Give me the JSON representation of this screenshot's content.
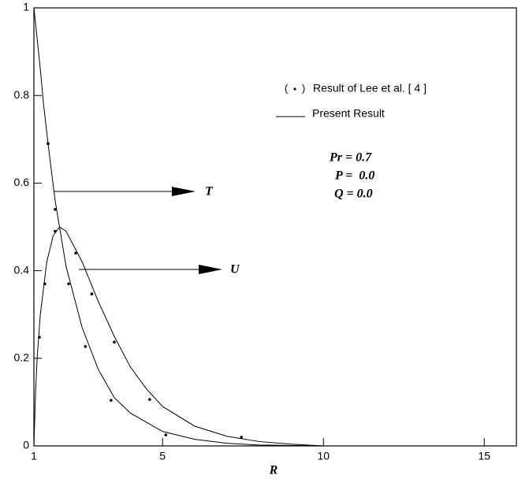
{
  "chart_data": {
    "type": "line",
    "xlabel": "R",
    "xlim": [
      1,
      16
    ],
    "ylim": [
      0,
      1
    ],
    "xticks": [
      1,
      5,
      10,
      15
    ],
    "yticks": [
      0,
      0.2,
      0.4,
      0.6,
      0.8,
      1
    ],
    "series": [
      {
        "name": "Result of Lee et al. [ 4 ]",
        "type": "scatter",
        "color": "#000000",
        "x": [
          1.44,
          1.66,
          2.08,
          2.6,
          3.4,
          5.1,
          1.17,
          1.34,
          1.66,
          2.3,
          2.8,
          3.5,
          4.6,
          7.45
        ],
        "values": [
          0.69,
          0.54,
          0.37,
          0.227,
          0.104,
          0.025,
          0.248,
          0.37,
          0.49,
          0.44,
          0.347,
          0.237,
          0.106,
          0.02
        ]
      },
      {
        "name": "Present Result",
        "type": "line",
        "color": "#000000",
        "curves": [
          {
            "label": "T",
            "x": [
              1,
              1.1,
              1.2,
              1.3,
              1.44,
              1.66,
              2,
              2.5,
              3,
              3.5,
              4,
              5,
              6,
              7,
              8,
              10
            ],
            "values": [
              1,
              0.93,
              0.86,
              0.78,
              0.69,
              0.56,
              0.41,
              0.27,
              0.175,
              0.11,
              0.075,
              0.033,
              0.015,
              0.006,
              0.002,
              0
            ]
          },
          {
            "label": "U",
            "x": [
              1,
              1.05,
              1.1,
              1.2,
              1.4,
              1.6,
              1.8,
              2,
              2.5,
              3,
              3.5,
              4,
              4.5,
              5,
              6,
              7,
              8,
              9,
              10
            ],
            "values": [
              0,
              0.12,
              0.2,
              0.3,
              0.42,
              0.48,
              0.5,
              0.49,
              0.42,
              0.33,
              0.25,
              0.18,
              0.13,
              0.09,
              0.045,
              0.022,
              0.01,
              0.004,
              0
            ]
          }
        ]
      }
    ],
    "annotations": [
      "Pr = 0.7",
      "P =  0.0",
      "Q = 0.0"
    ]
  }
}
